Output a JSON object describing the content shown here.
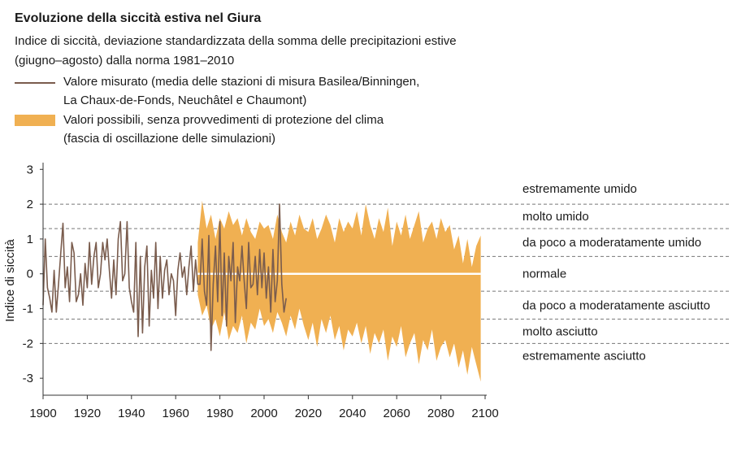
{
  "title": "Evoluzione della siccità estiva nel Giura",
  "subtitle_line1": "Indice di siccità, deviazione standardizzata della somma delle precipitazioni estive",
  "subtitle_line2": "(giugno–agosto) dalla norma 1981–2010",
  "legend": {
    "measured_line1": "Valore misurato (media delle stazioni di misura Basilea/Binningen,",
    "measured_line2": "La Chaux-de-Fonds, Neuchâtel e Chaumont)",
    "range_line1": "Valori possibili, senza provvedimenti di protezione del clima",
    "range_line2": "(fascia di oscillazione delle simulazioni)"
  },
  "colors": {
    "measured": "#7a5c4d",
    "band": "#f0b052",
    "median": "#ffffff",
    "dash": "#777777",
    "axis": "#333333"
  },
  "chart_data": {
    "type": "line",
    "title": "Evoluzione della siccità estiva nel Giura",
    "ylabel": "Indice di siccità",
    "xlabel": "",
    "xlim": [
      1900,
      2100
    ],
    "ylim": [
      -3.3,
      3.1
    ],
    "x_ticks": [
      1900,
      1920,
      1940,
      1960,
      1980,
      2000,
      2020,
      2040,
      2060,
      2080,
      2100
    ],
    "y_ticks": [
      -3,
      -2,
      -1,
      0,
      1,
      2,
      3
    ],
    "thresholds": [
      2,
      1.3,
      0.5,
      -0.5,
      -1.3,
      -2
    ],
    "categories": [
      {
        "label": "estremamente umido",
        "y": 2.45
      },
      {
        "label": "molto umido",
        "y": 1.65
      },
      {
        "label": "da poco a moderatamente umido",
        "y": 0.9
      },
      {
        "label": "normale",
        "y": 0.0
      },
      {
        "label": "da poco a moderatamente asciutto",
        "y": -0.9
      },
      {
        "label": "molto asciutto",
        "y": -1.65
      },
      {
        "label": "estremamente asciutto",
        "y": -2.35
      }
    ],
    "series": [
      {
        "name": "Valore misurato",
        "x": [
          1900,
          1901,
          1902,
          1903,
          1904,
          1905,
          1906,
          1907,
          1908,
          1909,
          1910,
          1911,
          1912,
          1913,
          1914,
          1915,
          1916,
          1917,
          1918,
          1919,
          1920,
          1921,
          1922,
          1923,
          1924,
          1925,
          1926,
          1927,
          1928,
          1929,
          1930,
          1931,
          1932,
          1933,
          1934,
          1935,
          1936,
          1937,
          1938,
          1939,
          1940,
          1941,
          1942,
          1943,
          1944,
          1945,
          1946,
          1947,
          1948,
          1949,
          1950,
          1951,
          1952,
          1953,
          1954,
          1955,
          1956,
          1957,
          1958,
          1959,
          1960,
          1961,
          1962,
          1963,
          1964,
          1965,
          1966,
          1967,
          1968,
          1969,
          1970,
          1971,
          1972,
          1973,
          1974,
          1975,
          1976,
          1977,
          1978,
          1979,
          1980,
          1981,
          1982,
          1983,
          1984,
          1985,
          1986,
          1987,
          1988,
          1989,
          1990,
          1991,
          1992,
          1993,
          1994,
          1995,
          1996,
          1997,
          1998,
          1999,
          2000,
          2001,
          2002,
          2003,
          2004,
          2005,
          2006,
          2007,
          2008,
          2009,
          2010
        ],
        "values": [
          -0.9,
          1.0,
          -0.4,
          -0.7,
          -1.1,
          0.1,
          -1.1,
          -0.3,
          0.6,
          1.45,
          -0.4,
          0.2,
          -0.8,
          0.9,
          0.6,
          -0.8,
          -0.6,
          0.0,
          -0.9,
          0.3,
          -0.4,
          0.9,
          -0.3,
          0.5,
          0.9,
          -0.4,
          0.0,
          0.9,
          0.4,
          1.0,
          0.1,
          -0.7,
          0.4,
          -0.6,
          1.0,
          1.5,
          -0.2,
          0.0,
          1.5,
          -0.4,
          -0.8,
          -1.1,
          0.9,
          -1.8,
          0.5,
          -1.7,
          0.2,
          0.8,
          -1.5,
          0.1,
          -0.7,
          0.9,
          -1.0,
          0.5,
          -0.7,
          0.1,
          0.4,
          -0.6,
          0.0,
          -0.2,
          -1.2,
          0.1,
          0.6,
          -0.1,
          0.2,
          -0.6,
          0.2,
          0.8,
          -0.5,
          0.4,
          -0.3,
          -0.3,
          1.0,
          -0.5,
          -0.9,
          1.1,
          -2.2,
          -0.3,
          0.8,
          -0.8,
          1.5,
          -1.2,
          0.6,
          -1.5,
          0.5,
          -0.2,
          0.9,
          -1.4,
          0.2,
          -0.2,
          0.8,
          -0.2,
          -1.0,
          0.9,
          -0.4,
          -0.3,
          0.5,
          -0.6,
          0.7,
          -0.4,
          0.6,
          -0.7,
          0.2,
          -1.1,
          0.7,
          -0.8,
          -0.2,
          2.0,
          -0.3,
          -1.1,
          -0.7
        ]
      },
      {
        "name": "Valori possibili",
        "x": [
          1970,
          1972,
          1974,
          1976,
          1978,
          1980,
          1982,
          1984,
          1986,
          1988,
          1990,
          1992,
          1994,
          1996,
          1998,
          2000,
          2002,
          2004,
          2006,
          2008,
          2010,
          2012,
          2014,
          2016,
          2018,
          2020,
          2022,
          2024,
          2026,
          2028,
          2030,
          2032,
          2034,
          2036,
          2038,
          2040,
          2042,
          2044,
          2046,
          2048,
          2050,
          2052,
          2054,
          2056,
          2058,
          2060,
          2062,
          2064,
          2066,
          2068,
          2070,
          2072,
          2074,
          2076,
          2078,
          2080,
          2082,
          2084,
          2086,
          2088,
          2090,
          2092,
          2094,
          2096,
          2098
        ],
        "upper": [
          0.9,
          2.1,
          1.3,
          1.7,
          1.0,
          1.6,
          1.3,
          1.8,
          1.4,
          1.6,
          1.1,
          1.6,
          1.2,
          1.0,
          1.5,
          1.3,
          1.4,
          1.0,
          1.7,
          1.2,
          0.9,
          1.5,
          1.1,
          1.7,
          1.3,
          1.2,
          1.6,
          1.0,
          1.3,
          1.7,
          1.4,
          0.9,
          1.6,
          1.2,
          1.5,
          1.3,
          1.8,
          1.1,
          2.0,
          1.4,
          1.0,
          1.6,
          1.2,
          1.9,
          0.8,
          1.5,
          1.1,
          1.7,
          1.0,
          1.4,
          1.8,
          0.9,
          1.3,
          1.5,
          1.0,
          1.6,
          1.2,
          1.4,
          0.7,
          1.1,
          0.3,
          1.0,
          0.2,
          0.8,
          1.1
        ],
        "lower": [
          -0.6,
          -1.2,
          -0.9,
          -1.6,
          -1.3,
          -1.8,
          -1.1,
          -1.9,
          -1.5,
          -1.7,
          -1.2,
          -2.0,
          -1.4,
          -1.6,
          -1.0,
          -1.5,
          -1.3,
          -1.7,
          -1.1,
          -1.4,
          -1.8,
          -1.2,
          -1.6,
          -1.0,
          -1.5,
          -1.9,
          -1.4,
          -2.1,
          -1.3,
          -1.7,
          -1.2,
          -1.9,
          -1.5,
          -2.2,
          -1.6,
          -1.8,
          -1.4,
          -2.0,
          -1.5,
          -2.3,
          -1.7,
          -2.0,
          -1.6,
          -2.5,
          -1.8,
          -2.1,
          -1.5,
          -2.4,
          -2.0,
          -1.7,
          -2.6,
          -1.9,
          -2.2,
          -1.6,
          -2.5,
          -2.1,
          -1.9,
          -2.4,
          -2.0,
          -2.7,
          -2.2,
          -2.9,
          -2.1,
          -2.6,
          -3.1
        ]
      }
    ],
    "median": {
      "x": [
        1970,
        2098
      ],
      "y": [
        0,
        0
      ]
    },
    "grid": false
  }
}
